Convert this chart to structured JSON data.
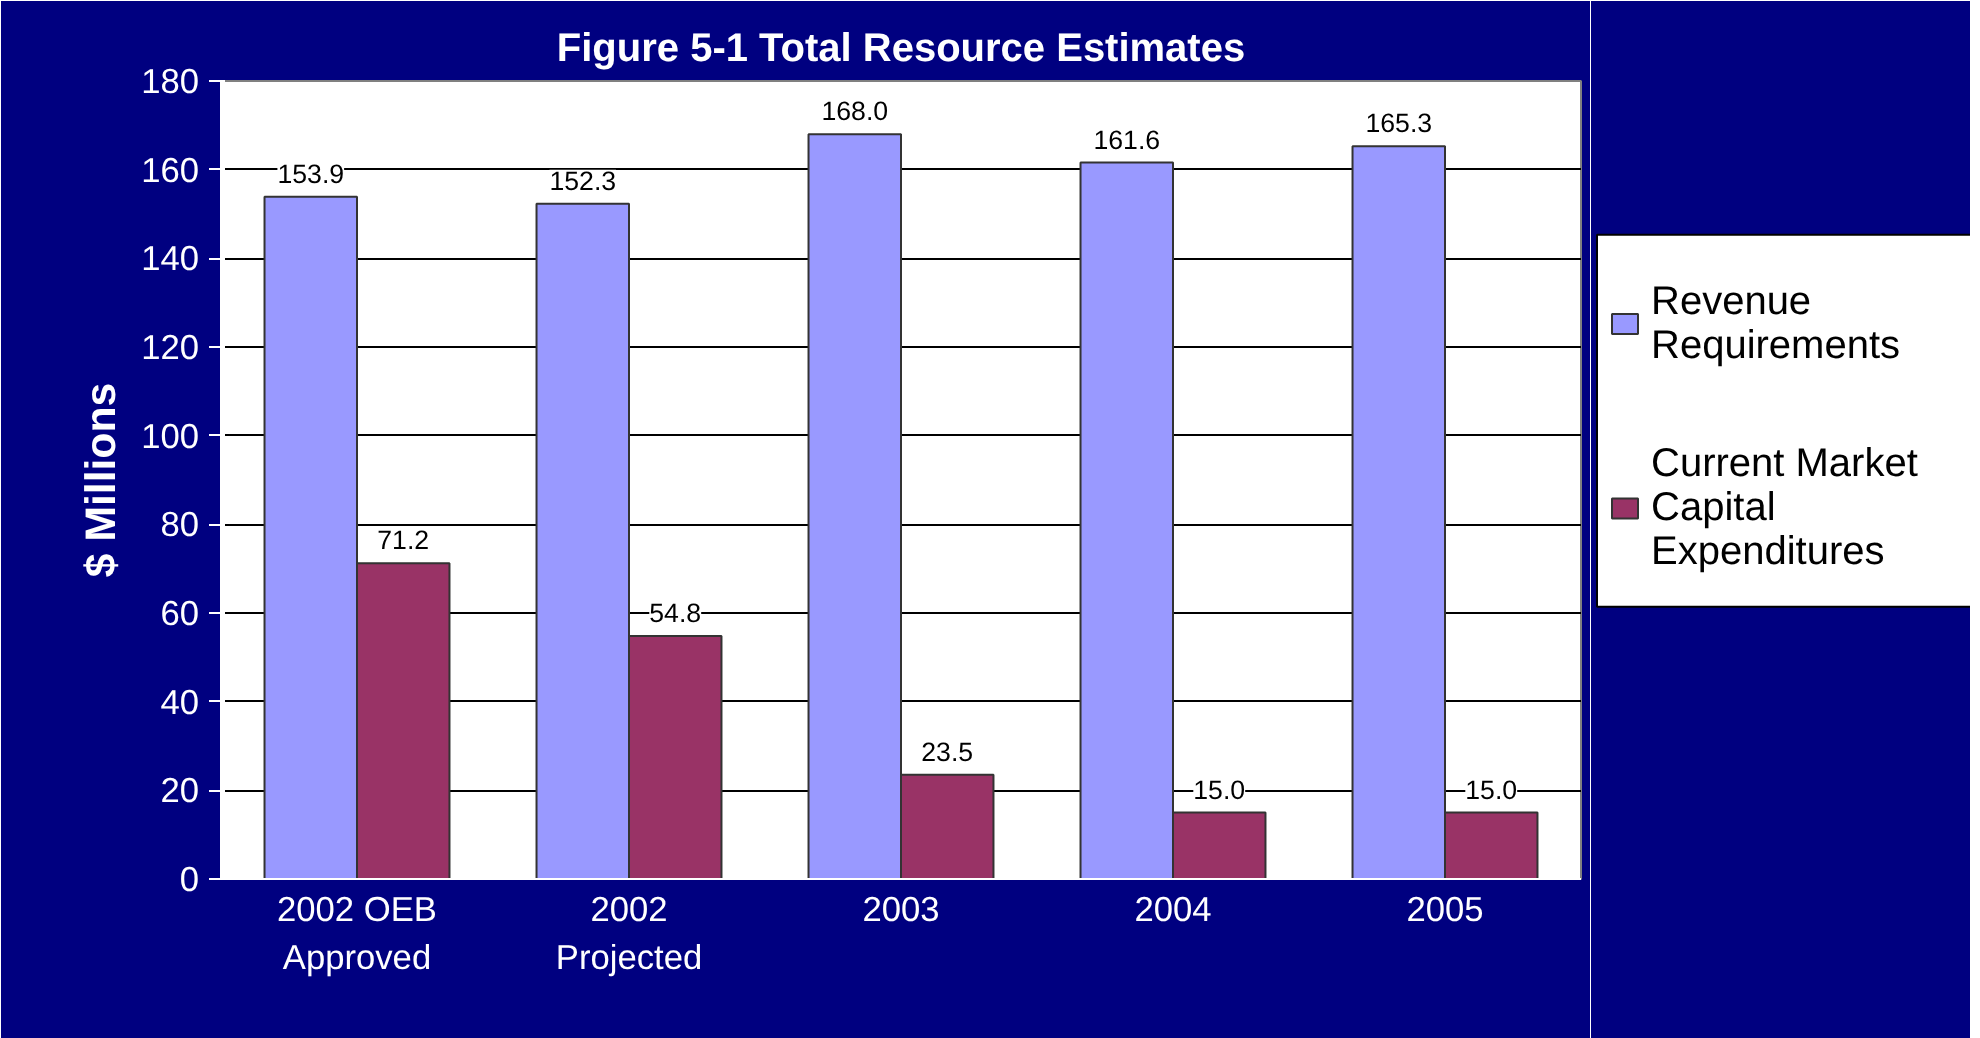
{
  "chart_data": {
    "type": "bar",
    "title": "Figure 5-1 Total Resource Estimates",
    "ylabel": "$ Millions",
    "categories": [
      "2002 OEB Approved",
      "2002 Projected",
      "2003",
      "2004",
      "2005"
    ],
    "series": [
      {
        "name": "Revenue Requirements",
        "color": "#9999ff",
        "values": [
          153.9,
          152.3,
          168.0,
          161.6,
          165.3
        ],
        "value_labels": [
          "153.9",
          "152.3",
          "168.0",
          "161.6",
          "165.3"
        ]
      },
      {
        "name": "Current Market Capital Expenditures",
        "color": "#993366",
        "values": [
          71.2,
          54.8,
          23.5,
          15.0,
          15.0
        ],
        "value_labels": [
          "71.2",
          "54.8",
          "23.5",
          "15.0",
          "15.0"
        ]
      }
    ],
    "ylim": [
      0,
      180
    ],
    "yticks": [
      0,
      20,
      40,
      60,
      80,
      100,
      120,
      140,
      160,
      180
    ],
    "grid": "y",
    "legend": "right"
  }
}
